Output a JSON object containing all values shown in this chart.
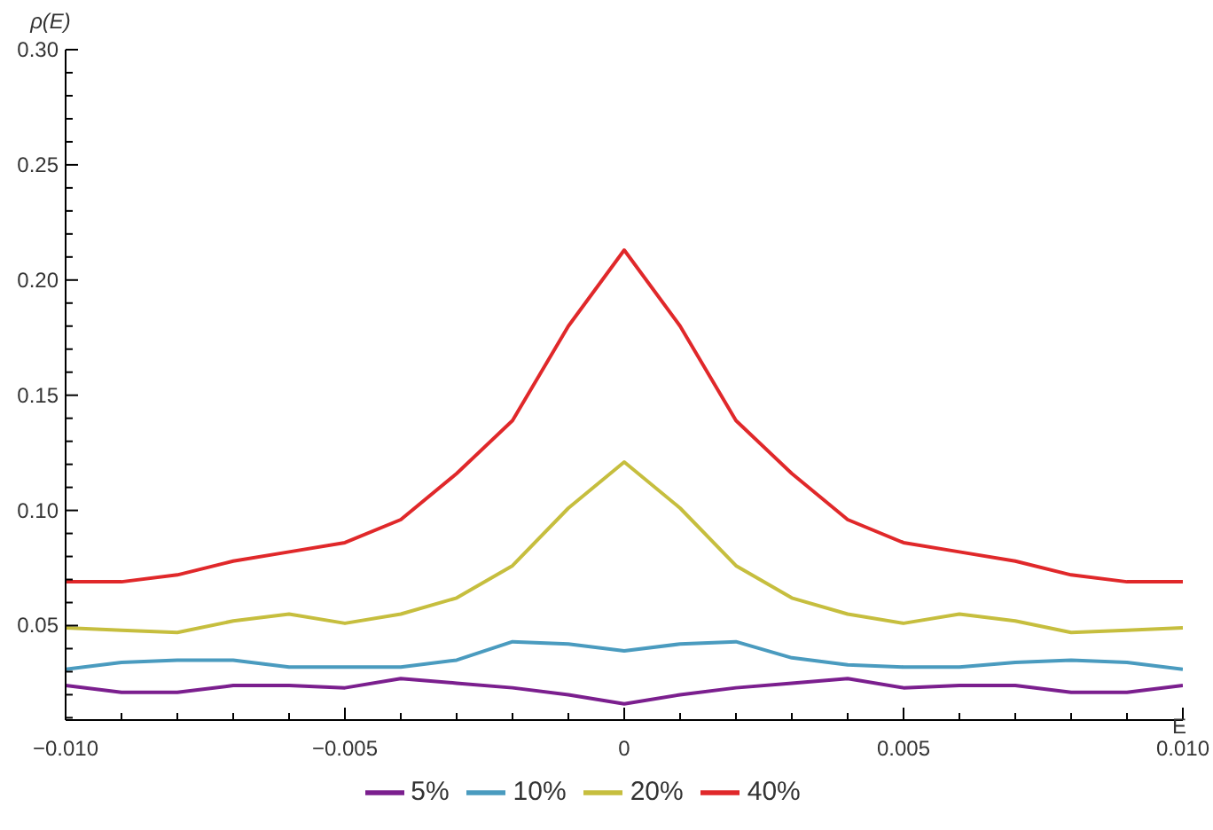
{
  "chart_data": {
    "type": "line",
    "xlabel": "E",
    "ylabel": "ρ(E)",
    "x": [
      -0.01,
      -0.009,
      -0.008,
      -0.007,
      -0.006,
      -0.005,
      -0.004,
      -0.003,
      -0.002,
      -0.001,
      0,
      0.001,
      0.002,
      0.003,
      0.004,
      0.005,
      0.006,
      0.007,
      0.008,
      0.009,
      0.01
    ],
    "series": [
      {
        "name": "5%",
        "color": "#7b1f8e",
        "values": [
          0.024,
          0.021,
          0.021,
          0.024,
          0.024,
          0.023,
          0.027,
          0.025,
          0.023,
          0.02,
          0.016,
          0.02,
          0.023,
          0.025,
          0.027,
          0.023,
          0.024,
          0.024,
          0.021,
          0.021,
          0.024
        ]
      },
      {
        "name": "10%",
        "color": "#4a9bbf",
        "values": [
          0.031,
          0.034,
          0.035,
          0.035,
          0.032,
          0.032,
          0.032,
          0.035,
          0.043,
          0.042,
          0.039,
          0.042,
          0.043,
          0.036,
          0.033,
          0.032,
          0.032,
          0.034,
          0.035,
          0.034,
          0.031
        ]
      },
      {
        "name": "20%",
        "color": "#c6be3e",
        "values": [
          0.049,
          0.048,
          0.047,
          0.052,
          0.055,
          0.051,
          0.055,
          0.062,
          0.076,
          0.101,
          0.121,
          0.101,
          0.076,
          0.062,
          0.055,
          0.051,
          0.055,
          0.052,
          0.047,
          0.048,
          0.049
        ]
      },
      {
        "name": "40%",
        "color": "#e0282a",
        "values": [
          0.069,
          0.069,
          0.072,
          0.078,
          0.082,
          0.086,
          0.096,
          0.116,
          0.139,
          0.18,
          0.213,
          0.18,
          0.139,
          0.116,
          0.096,
          0.086,
          0.082,
          0.078,
          0.072,
          0.069,
          0.069
        ]
      }
    ],
    "xlim": [
      -0.01,
      0.01
    ],
    "xticks": [
      {
        "value": -0.01,
        "label": "−0.010"
      },
      {
        "value": -0.009,
        "label": null
      },
      {
        "value": -0.008,
        "label": null
      },
      {
        "value": -0.007,
        "label": null
      },
      {
        "value": -0.006,
        "label": null
      },
      {
        "value": -0.005,
        "label": "−0.005"
      },
      {
        "value": -0.004,
        "label": null
      },
      {
        "value": -0.003,
        "label": null
      },
      {
        "value": -0.002,
        "label": null
      },
      {
        "value": -0.001,
        "label": null
      },
      {
        "value": 0,
        "label": "0"
      },
      {
        "value": 0.001,
        "label": null
      },
      {
        "value": 0.002,
        "label": null
      },
      {
        "value": 0.003,
        "label": null
      },
      {
        "value": 0.004,
        "label": null
      },
      {
        "value": 0.005,
        "label": "0.005"
      },
      {
        "value": 0.006,
        "label": null
      },
      {
        "value": 0.007,
        "label": null
      },
      {
        "value": 0.008,
        "label": null
      },
      {
        "value": 0.009,
        "label": null
      },
      {
        "value": 0.01,
        "label": "0.010"
      }
    ],
    "ylim": [
      0.009,
      0.3
    ],
    "yticks": [
      {
        "value": 0.01,
        "label": null
      },
      {
        "value": 0.02,
        "label": null
      },
      {
        "value": 0.03,
        "label": null
      },
      {
        "value": 0.04,
        "label": null
      },
      {
        "value": 0.05,
        "label": "0.05"
      },
      {
        "value": 0.06,
        "label": null
      },
      {
        "value": 0.07,
        "label": null
      },
      {
        "value": 0.08,
        "label": null
      },
      {
        "value": 0.09,
        "label": null
      },
      {
        "value": 0.1,
        "label": "0.10"
      },
      {
        "value": 0.11,
        "label": null
      },
      {
        "value": 0.12,
        "label": null
      },
      {
        "value": 0.13,
        "label": null
      },
      {
        "value": 0.14,
        "label": null
      },
      {
        "value": 0.15,
        "label": "0.15"
      },
      {
        "value": 0.16,
        "label": null
      },
      {
        "value": 0.17,
        "label": null
      },
      {
        "value": 0.18,
        "label": null
      },
      {
        "value": 0.19,
        "label": null
      },
      {
        "value": 0.2,
        "label": "0.20"
      },
      {
        "value": 0.21,
        "label": null
      },
      {
        "value": 0.22,
        "label": null
      },
      {
        "value": 0.23,
        "label": null
      },
      {
        "value": 0.24,
        "label": null
      },
      {
        "value": 0.25,
        "label": "0.25"
      },
      {
        "value": 0.26,
        "label": null
      },
      {
        "value": 0.27,
        "label": null
      },
      {
        "value": 0.28,
        "label": null
      },
      {
        "value": 0.29,
        "label": null
      },
      {
        "value": 0.3,
        "label": "0.30"
      }
    ],
    "grid": false,
    "legend": "bottom",
    "marker": "none",
    "line_style": "solid"
  }
}
